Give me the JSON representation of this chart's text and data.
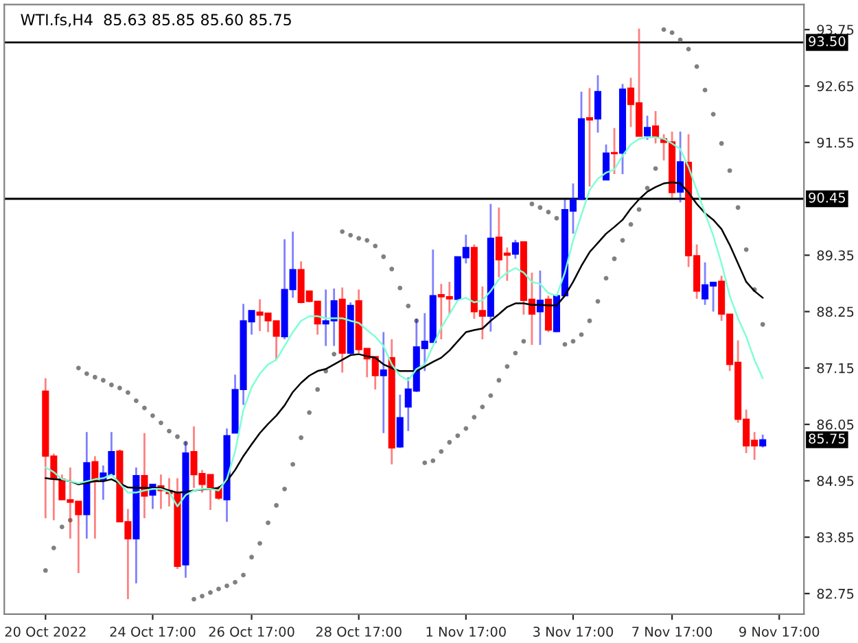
{
  "chart_data": {
    "type": "candlestick",
    "title": "WTI.fs,H4  85.63 85.85 85.60 85.75",
    "categories": [
      "20 Oct 2022",
      null,
      null,
      null,
      null,
      null,
      null,
      null,
      null,
      null,
      null,
      null,
      null,
      "24 Oct 17:00",
      null,
      null,
      null,
      null,
      null,
      null,
      null,
      null,
      null,
      null,
      null,
      "26 Oct 17:00",
      null,
      null,
      null,
      null,
      null,
      null,
      null,
      null,
      null,
      null,
      null,
      null,
      "28 Oct 17:00",
      null,
      null,
      null,
      null,
      null,
      null,
      null,
      null,
      null,
      null,
      null,
      null,
      "1 Nov 17:00",
      null,
      null,
      null,
      null,
      null,
      null,
      null,
      null,
      null,
      null,
      null,
      null,
      "3 Nov 17:00",
      null,
      null,
      null,
      null,
      null,
      null,
      null,
      null,
      null,
      null,
      null,
      "7 Nov 17:00",
      null,
      null,
      null,
      null,
      null,
      null,
      null,
      null,
      null,
      null,
      null,
      null,
      "9 Nov 17:00"
    ],
    "ohlc": [
      [
        86.7,
        86.95,
        84.22,
        85.43
      ],
      [
        85.43,
        85.48,
        84.18,
        84.98
      ],
      [
        84.98,
        85.07,
        84.58,
        84.58
      ],
      [
        84.58,
        85.21,
        83.82,
        84.53
      ],
      [
        84.55,
        84.55,
        83.15,
        84.29
      ],
      [
        84.29,
        85.9,
        83.82,
        85.3
      ],
      [
        85.32,
        85.43,
        83.82,
        84.94
      ],
      [
        84.97,
        85.25,
        84.58,
        85.1
      ],
      [
        85.07,
        85.9,
        85.07,
        85.52
      ],
      [
        85.53,
        85.56,
        84.15,
        84.15
      ],
      [
        84.15,
        84.4,
        82.64,
        83.82
      ],
      [
        83.82,
        85.21,
        82.95,
        85.05
      ],
      [
        85.05,
        85.88,
        84.22,
        84.65
      ],
      [
        84.67,
        84.88,
        84.4,
        84.88
      ],
      [
        84.85,
        85.07,
        84.4,
        84.76
      ],
      [
        84.76,
        85.0,
        84.45,
        84.7
      ],
      [
        84.72,
        85.0,
        83.23,
        83.28
      ],
      [
        83.31,
        85.72,
        83.06,
        85.49
      ],
      [
        85.52,
        86.01,
        84.81,
        85.07
      ],
      [
        85.09,
        85.16,
        84.72,
        84.88
      ],
      [
        85.07,
        85.07,
        84.38,
        84.81
      ],
      [
        84.81,
        84.85,
        84.58,
        84.61
      ],
      [
        84.58,
        85.97,
        84.15,
        85.83
      ],
      [
        85.88,
        87.02,
        85.88,
        86.73
      ],
      [
        86.73,
        88.4,
        86.43,
        88.07
      ],
      [
        88.05,
        88.27,
        87.8,
        88.27
      ],
      [
        88.24,
        88.49,
        87.87,
        88.18
      ],
      [
        88.22,
        88.22,
        87.85,
        88.07
      ],
      [
        88.07,
        88.07,
        87.31,
        87.77
      ],
      [
        87.76,
        89.66,
        87.71,
        88.68
      ],
      [
        88.68,
        89.81,
        88.52,
        89.07
      ],
      [
        89.07,
        89.23,
        88.41,
        88.43
      ],
      [
        88.65,
        88.65,
        88.43,
        88.45
      ],
      [
        88.45,
        88.45,
        87.8,
        88.01
      ],
      [
        88.01,
        88.68,
        87.58,
        88.07
      ],
      [
        88.07,
        88.7,
        87.58,
        88.46
      ],
      [
        88.49,
        88.72,
        87.06,
        87.44
      ],
      [
        87.44,
        88.43,
        87.41,
        88.37
      ],
      [
        88.46,
        88.68,
        87.44,
        87.51
      ],
      [
        87.53,
        87.53,
        86.97,
        87.33
      ],
      [
        87.37,
        87.37,
        86.73,
        87.0
      ],
      [
        87.0,
        87.85,
        85.88,
        87.11
      ],
      [
        87.35,
        87.71,
        85.27,
        85.59
      ],
      [
        85.61,
        86.63,
        85.59,
        86.18
      ],
      [
        86.39,
        86.97,
        85.92,
        86.74
      ],
      [
        86.7,
        88.11,
        86.68,
        87.56
      ],
      [
        87.53,
        88.22,
        87.09,
        87.67
      ],
      [
        87.65,
        89.46,
        87.65,
        88.56
      ],
      [
        88.58,
        88.79,
        87.71,
        88.54
      ],
      [
        88.54,
        88.83,
        88.2,
        88.5
      ],
      [
        88.49,
        89.32,
        88.47,
        89.32
      ],
      [
        89.3,
        89.75,
        89.19,
        89.5
      ],
      [
        89.5,
        89.56,
        88.11,
        88.25
      ],
      [
        88.27,
        88.74,
        87.71,
        88.16
      ],
      [
        88.16,
        90.35,
        87.86,
        89.68
      ],
      [
        89.7,
        90.28,
        88.92,
        89.26
      ],
      [
        89.39,
        89.5,
        88.85,
        89.35
      ],
      [
        89.37,
        89.65,
        89.28,
        89.59
      ],
      [
        89.61,
        89.61,
        88.19,
        88.47
      ],
      [
        88.49,
        89.01,
        87.6,
        88.2
      ],
      [
        88.25,
        89.05,
        87.6,
        88.47
      ],
      [
        88.49,
        88.56,
        87.85,
        87.89
      ],
      [
        87.86,
        88.56,
        87.85,
        88.56
      ],
      [
        88.56,
        90.44,
        88.56,
        90.24
      ],
      [
        90.21,
        90.75,
        89.77,
        90.44
      ],
      [
        90.44,
        92.54,
        90.44,
        92.01
      ],
      [
        92.03,
        92.61,
        90.69,
        91.99
      ],
      [
        92.01,
        92.86,
        91.74,
        92.54
      ],
      [
        90.82,
        91.51,
        90.82,
        91.34
      ],
      [
        91.35,
        91.83,
        90.93,
        91.33
      ],
      [
        91.34,
        92.69,
        90.93,
        92.59
      ],
      [
        92.61,
        92.81,
        91.85,
        92.29
      ],
      [
        92.32,
        93.77,
        91.67,
        91.67
      ],
      [
        91.68,
        92.07,
        91.6,
        91.84
      ],
      [
        91.87,
        92.16,
        91.53,
        91.65
      ],
      [
        91.62,
        91.71,
        91.2,
        91.55
      ],
      [
        91.56,
        91.76,
        90.47,
        90.57
      ],
      [
        90.58,
        91.76,
        90.38,
        91.17
      ],
      [
        91.16,
        91.71,
        89.12,
        89.34
      ],
      [
        89.34,
        89.56,
        88.5,
        88.65
      ],
      [
        88.5,
        89.21,
        88.38,
        88.77
      ],
      [
        88.75,
        88.82,
        88.25,
        88.82
      ],
      [
        88.84,
        88.95,
        88.07,
        88.2
      ],
      [
        88.2,
        88.2,
        87.09,
        87.22
      ],
      [
        87.26,
        87.69,
        86.08,
        86.15
      ],
      [
        86.15,
        86.34,
        85.49,
        85.63
      ],
      [
        85.74,
        85.9,
        85.36,
        85.63
      ],
      [
        85.63,
        85.85,
        85.6,
        85.75
      ],
      null,
      null
    ],
    "colors": [
      "#ff0000",
      "#ff0000",
      "#ff0000",
      "#ff0000",
      "#ff0000",
      "#0000ff",
      "#ff0000",
      "#0000ff",
      "#0000ff",
      "#ff0000",
      "#ff0000",
      "#0000ff",
      "#ff0000",
      "#0000ff",
      "#ff0000",
      "#ff0000",
      "#ff0000",
      "#0000ff",
      "#ff0000",
      "#ff0000",
      "#ff0000",
      "#ff0000",
      "#0000ff",
      "#0000ff",
      "#0000ff",
      "#0000ff",
      "#ff0000",
      "#ff0000",
      "#ff0000",
      "#0000ff",
      "#0000ff",
      "#ff0000",
      "#ff0000",
      "#ff0000",
      "#0000ff",
      "#0000ff",
      "#ff0000",
      "#0000ff",
      "#ff0000",
      "#ff0000",
      "#ff0000",
      "#0000ff",
      "#ff0000",
      "#0000ff",
      "#0000ff",
      "#0000ff",
      "#0000ff",
      "#0000ff",
      "#ff0000",
      "#ff0000",
      "#0000ff",
      "#0000ff",
      "#ff0000",
      "#ff0000",
      "#0000ff",
      "#ff0000",
      "#ff0000",
      "#0000ff",
      "#ff0000",
      "#ff0000",
      "#0000ff",
      "#ff0000",
      "#0000ff",
      "#0000ff",
      "#0000ff",
      "#0000ff",
      "#ff0000",
      "#0000ff",
      "#0000ff",
      "#ff0000",
      "#0000ff",
      "#ff0000",
      "#ff0000",
      "#0000ff",
      "#ff0000",
      "#ff0000",
      "#ff0000",
      "#0000ff",
      "#ff0000",
      "#ff0000",
      "#0000ff",
      "#0000ff",
      "#ff0000",
      "#ff0000",
      "#ff0000",
      "#ff0000",
      "#ff0000",
      "#0000ff",
      null,
      null
    ],
    "series": [
      {
        "type": "line",
        "color": "#000000",
        "values": [
          85.0,
          84.98,
          84.97,
          84.94,
          84.88,
          84.91,
          84.94,
          84.94,
          84.98,
          84.9,
          84.82,
          84.81,
          84.81,
          84.81,
          84.81,
          84.76,
          84.72,
          84.73,
          84.76,
          84.78,
          84.79,
          84.81,
          84.94,
          85.16,
          85.43,
          85.66,
          85.88,
          86.06,
          86.22,
          86.42,
          86.68,
          86.86,
          87.0,
          87.09,
          87.13,
          87.22,
          87.31,
          87.4,
          87.42,
          87.38,
          87.35,
          87.22,
          87.15,
          87.09,
          87.09,
          87.09,
          87.18,
          87.27,
          87.35,
          87.49,
          87.67,
          87.85,
          87.89,
          87.92,
          88.07,
          88.2,
          88.34,
          88.41,
          88.41,
          88.38,
          88.38,
          88.37,
          88.37,
          88.56,
          88.83,
          89.14,
          89.41,
          89.59,
          89.77,
          89.9,
          90.04,
          90.26,
          90.44,
          90.59,
          90.68,
          90.75,
          90.77,
          90.75,
          90.57,
          90.35,
          90.17,
          90.04,
          89.86,
          89.55,
          89.19,
          88.83,
          88.65,
          88.52,
          null,
          null
        ]
      },
      {
        "type": "line",
        "color": "#7fffd4",
        "values": [
          85.21,
          85.12,
          84.98,
          84.94,
          84.9,
          84.94,
          84.98,
          85.0,
          85.07,
          84.9,
          84.72,
          84.72,
          84.76,
          84.79,
          84.79,
          84.73,
          84.45,
          84.67,
          84.76,
          84.79,
          84.79,
          84.76,
          84.98,
          85.52,
          86.33,
          86.77,
          87.04,
          87.22,
          87.31,
          87.58,
          87.85,
          88.07,
          88.16,
          88.16,
          88.12,
          88.12,
          88.12,
          88.07,
          88.03,
          87.89,
          87.76,
          87.58,
          87.22,
          87.0,
          86.91,
          87.13,
          87.22,
          87.58,
          87.94,
          88.2,
          88.47,
          88.52,
          88.43,
          88.47,
          88.65,
          88.88,
          89.01,
          89.1,
          89.01,
          88.83,
          88.79,
          88.61,
          88.56,
          89.01,
          89.64,
          90.13,
          90.62,
          90.84,
          90.96,
          91.02,
          91.29,
          91.51,
          91.62,
          91.65,
          91.65,
          91.62,
          91.53,
          91.42,
          91.07,
          90.62,
          90.17,
          89.73,
          89.19,
          88.56,
          88.12,
          87.76,
          87.31,
          86.95,
          null,
          null
        ]
      },
      {
        "type": "scatter",
        "color": "#808080",
        "values": [
          83.2,
          83.64,
          84.05,
          84.18,
          87.15,
          87.04,
          86.97,
          86.91,
          86.82,
          86.76,
          86.67,
          86.51,
          86.37,
          86.22,
          86.08,
          85.92,
          85.81,
          85.68,
          82.64,
          82.7,
          82.77,
          82.84,
          82.9,
          82.97,
          83.11,
          83.46,
          83.73,
          84.13,
          84.47,
          84.79,
          85.27,
          85.79,
          86.28,
          86.73,
          87.09,
          87.42,
          89.81,
          89.74,
          89.68,
          89.64,
          89.53,
          89.32,
          89.08,
          88.71,
          88.36,
          88.07,
          85.3,
          85.34,
          85.52,
          85.7,
          85.83,
          85.97,
          86.19,
          86.39,
          86.61,
          86.91,
          87.18,
          87.44,
          87.67,
          90.35,
          90.28,
          90.19,
          90.07,
          87.61,
          87.67,
          87.8,
          88.07,
          88.45,
          88.9,
          89.28,
          89.64,
          89.95,
          90.24,
          90.66,
          91.04,
          93.75,
          93.69,
          93.55,
          93.37,
          93.03,
          92.57,
          92.1,
          91.53,
          91.0,
          90.28,
          89.46,
          88.68,
          88.0,
          null,
          null
        ]
      }
    ],
    "ylim": [
      82.35,
      94.24
    ],
    "yticks": [
      82.75,
      83.85,
      84.95,
      86.05,
      87.15,
      88.25,
      89.35,
      91.55,
      92.65,
      93.75
    ],
    "ref_lines": [
      {
        "axis": "y",
        "value": 93.5,
        "label": "93.50",
        "color": "#000000",
        "line_style": "solid"
      },
      {
        "axis": "y",
        "value": 90.45,
        "label": "90.45",
        "color": "#000000",
        "line_style": "solid"
      }
    ],
    "annotations": [
      "85.75"
    ],
    "grid": false,
    "legend": false
  }
}
